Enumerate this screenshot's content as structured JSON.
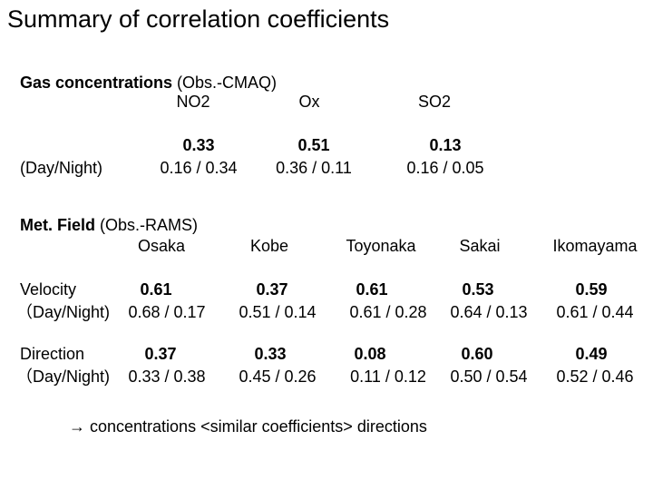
{
  "title": "Summary of correlation coefficients",
  "gas": {
    "heading_bold": "Gas concentrations",
    "heading_rest": " (Obs.-CMAQ)",
    "columns": [
      "NO2",
      "Ox",
      "SO2"
    ],
    "row_label": "(Day/Night)",
    "overall": [
      "0.33",
      "0.51",
      "0.13"
    ],
    "day_night": [
      "0.16 / 0.34",
      "0.36 / 0.11",
      "0.16 / 0.05"
    ]
  },
  "met": {
    "heading_bold": "Met. Field",
    "heading_rest": " (Obs.-RAMS)",
    "columns": [
      "Osaka",
      "Kobe",
      "Toyonaka",
      "Sakai",
      "Ikomayama"
    ],
    "rows": [
      {
        "label": "Velocity",
        "sub_label": "（Day/Night)",
        "overall": [
          "0.61",
          "0.37",
          "0.61",
          "0.53",
          "0.59"
        ],
        "day_night": [
          "0.68 / 0.17",
          "0.51 / 0.14",
          "0.61 / 0.28",
          "0.64 / 0.13",
          "0.61 / 0.44"
        ]
      },
      {
        "label": "Direction",
        "sub_label": "（Day/Night)",
        "overall": [
          "0.37",
          "0.33",
          "0.08",
          "0.60",
          "0.49"
        ],
        "day_night": [
          "0.33 / 0.38",
          "0.45 / 0.26",
          "0.11 / 0.12",
          "0.50 / 0.54",
          "0.52 / 0.46"
        ]
      }
    ]
  },
  "footer": "→  concentrations <similar coefficients> directions"
}
